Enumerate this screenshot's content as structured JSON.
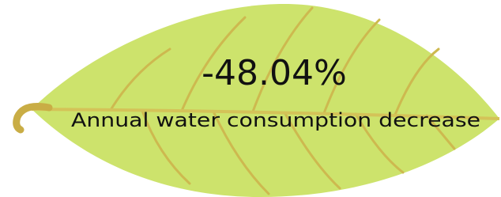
{
  "headline": {
    "value": "-48.04%",
    "caption": "Annual water consumption decrease"
  }
}
